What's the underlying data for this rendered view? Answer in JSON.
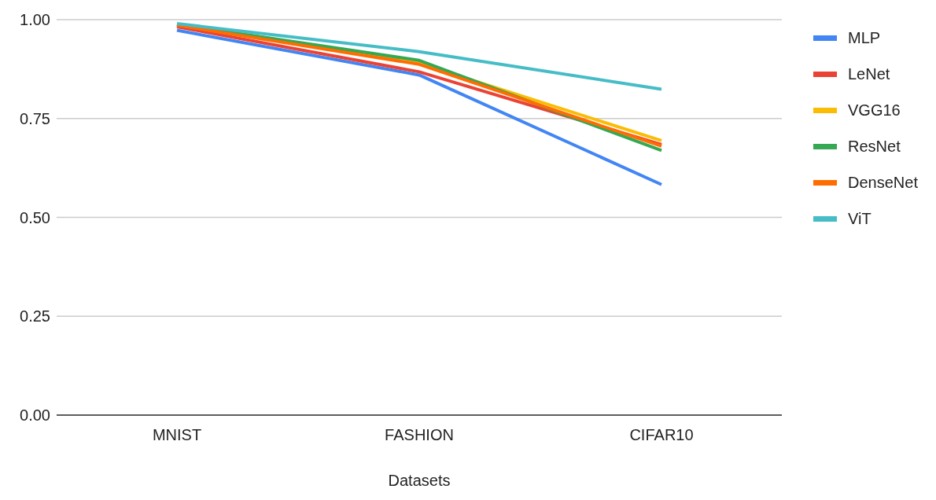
{
  "chart_data": {
    "type": "line",
    "xlabel": "Datasets",
    "categories": [
      "MNIST",
      "FASHION",
      "CIFAR10"
    ],
    "series": [
      {
        "name": "MLP",
        "color": "#4285f4",
        "values": [
          0.973,
          0.86,
          0.583
        ]
      },
      {
        "name": "LeNet",
        "color": "#ea4335",
        "values": [
          0.982,
          0.868,
          0.684
        ]
      },
      {
        "name": "VGG16",
        "color": "#fbbc04",
        "values": [
          0.987,
          0.89,
          0.694
        ]
      },
      {
        "name": "ResNet",
        "color": "#34a853",
        "values": [
          0.988,
          0.897,
          0.669
        ]
      },
      {
        "name": "DenseNet",
        "color": "#ff6d01",
        "values": [
          0.986,
          0.887,
          0.68
        ]
      },
      {
        "name": "ViT",
        "color": "#46bdc6",
        "values": [
          0.99,
          0.919,
          0.824
        ]
      }
    ],
    "ylim": [
      0,
      1
    ],
    "yticks": [
      {
        "value": 0,
        "label": "0.00"
      },
      {
        "value": 0.25,
        "label": "0.25"
      },
      {
        "value": 0.5,
        "label": "0.50"
      },
      {
        "value": 0.75,
        "label": "0.75"
      },
      {
        "value": 1,
        "label": "1.00"
      }
    ],
    "grid": "y",
    "legend": "right",
    "marker": "none",
    "line_style": "solid"
  }
}
